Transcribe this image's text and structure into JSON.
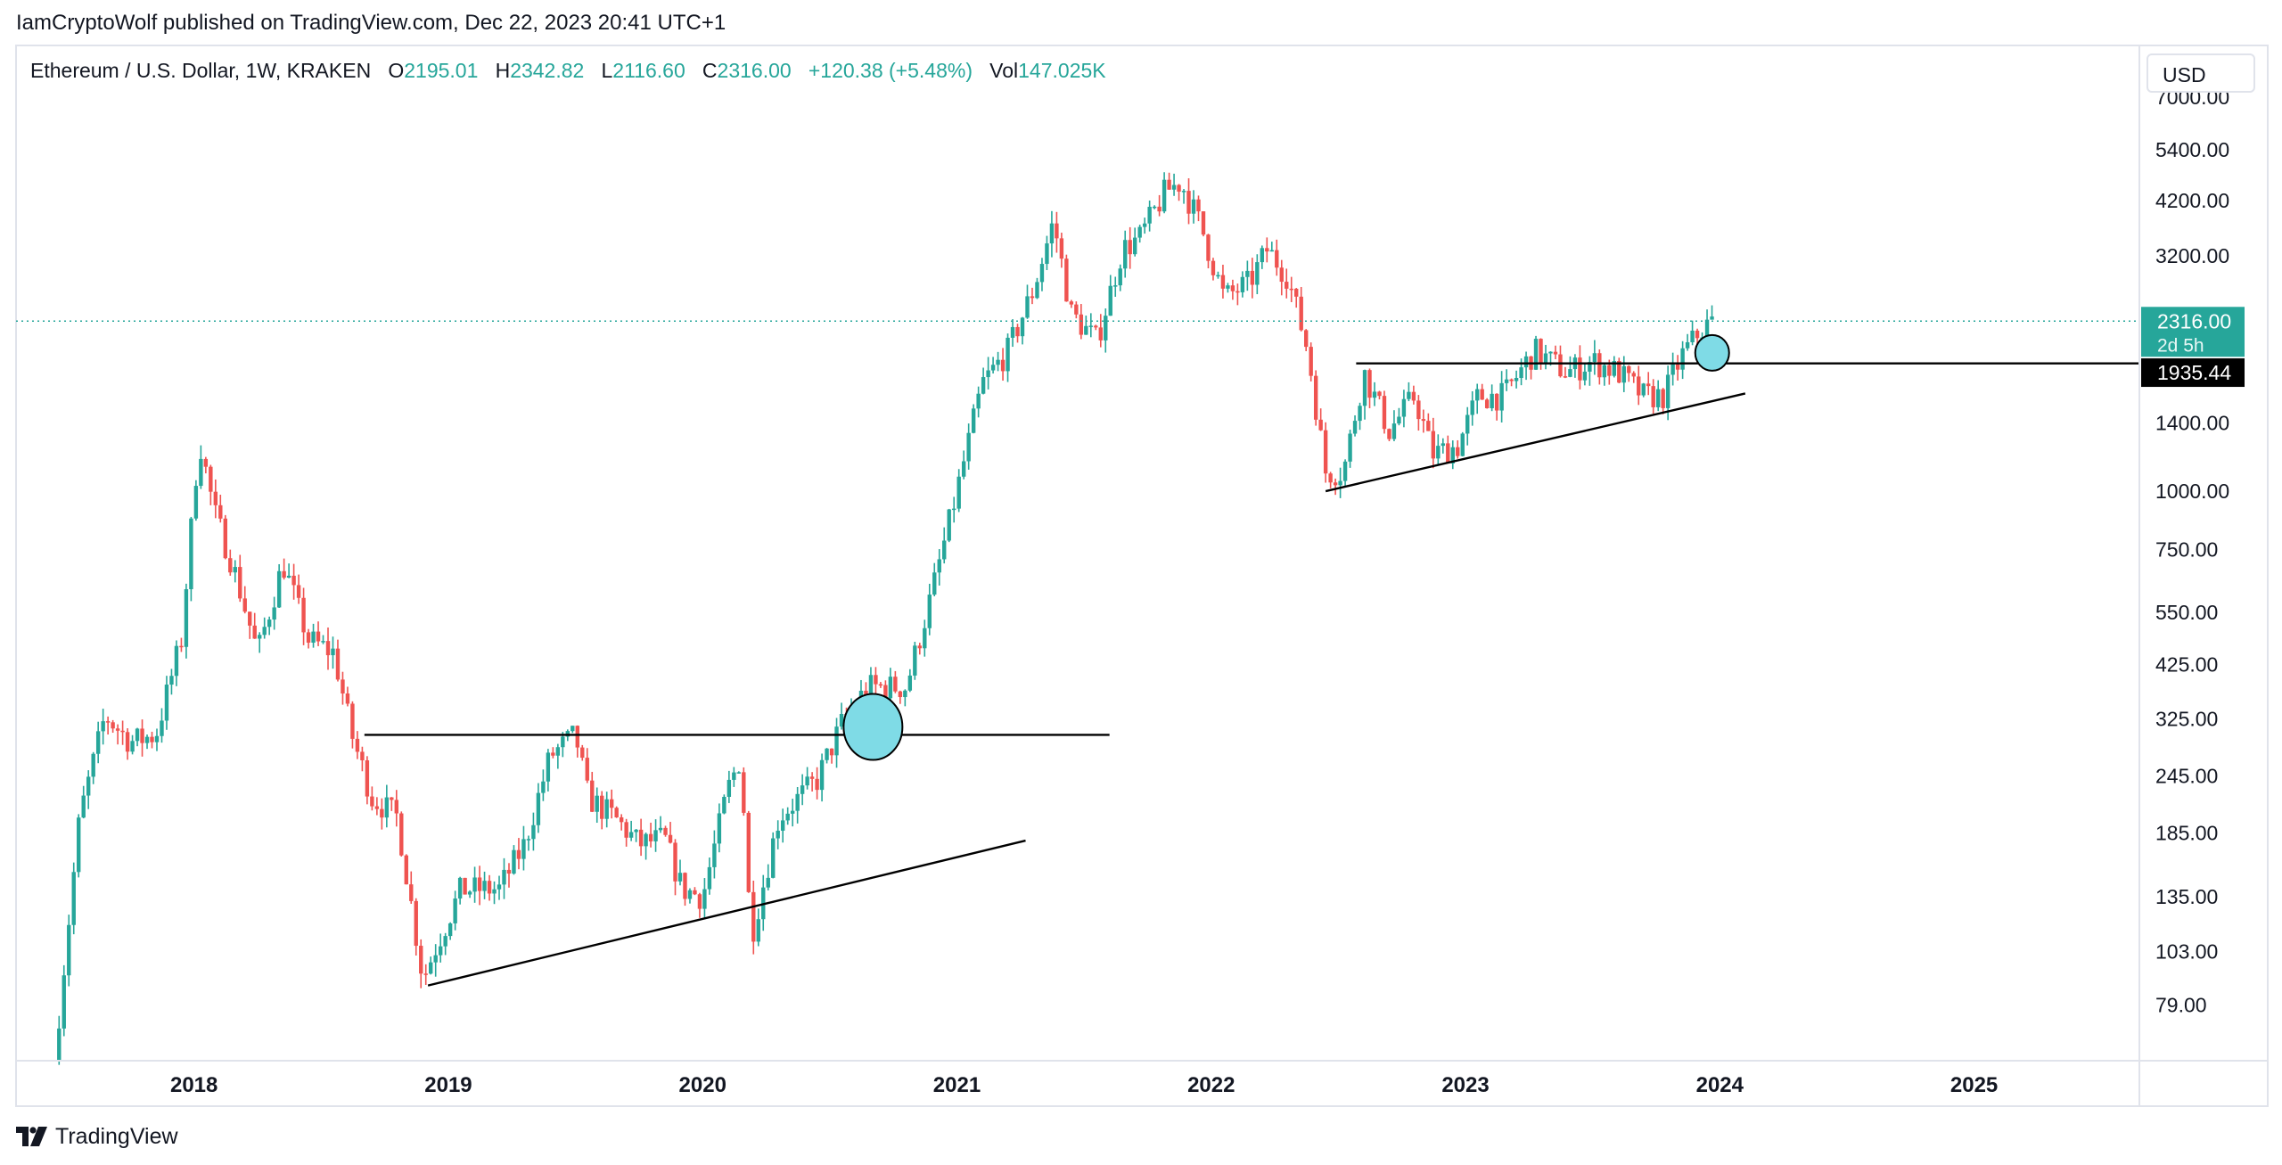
{
  "publisher": {
    "text": "IamCryptoWolf published on TradingView.com, Dec 22, 2023 20:41 UTC+1"
  },
  "legend": {
    "symbol": "Ethereum / U.S. Dollar, 1W, KRAKEN",
    "o_label": "O",
    "o_value": "2195.01",
    "h_label": "H",
    "h_value": "2342.82",
    "l_label": "L",
    "l_value": "2116.60",
    "c_label": "C",
    "c_value": "2316.00",
    "change": "+120.38 (+5.48%)",
    "vol_label": "Vol",
    "vol_value": "147.025K"
  },
  "currency_button": "USD",
  "brand": {
    "logo": "tradingview-logo-icon",
    "name": "TradingView"
  },
  "colors": {
    "up": "#26a69a",
    "down": "#ef5350",
    "circle_fill": "#7fdbe6",
    "last_price_bg": "#26a69a",
    "level_bg": "#000000",
    "drawing": "#000000"
  },
  "chart_data": {
    "type": "candlestick",
    "title": "Ethereum / U.S. Dollar, 1W, KRAKEN",
    "scale": "log",
    "ylim": [
      60,
      9000
    ],
    "xlim": [
      2017.3,
      2025.65
    ],
    "x_ticks": [
      "2018",
      "2019",
      "2020",
      "2021",
      "2022",
      "2023",
      "2024",
      "2025"
    ],
    "y_ticks": [
      "7000.00",
      "5400.00",
      "4200.00",
      "3200.00",
      "1400.00",
      "1000.00",
      "750.00",
      "550.00",
      "425.00",
      "325.00",
      "245.00",
      "185.00",
      "135.00",
      "103.00",
      "79.00"
    ],
    "last_price": {
      "value": 2316.0,
      "label": "2316.00",
      "countdown": "2d 5h"
    },
    "level_label": {
      "value": 1935.44,
      "label": "1935.44"
    },
    "price_path": [
      [
        2017.45,
        60
      ],
      [
        2017.55,
        200
      ],
      [
        2017.65,
        330
      ],
      [
        2017.75,
        290
      ],
      [
        2017.85,
        300
      ],
      [
        2017.95,
        480
      ],
      [
        2018.02,
        1300
      ],
      [
        2018.08,
        900
      ],
      [
        2018.15,
        700
      ],
      [
        2018.25,
        450
      ],
      [
        2018.35,
        700
      ],
      [
        2018.45,
        480
      ],
      [
        2018.55,
        450
      ],
      [
        2018.62,
        300
      ],
      [
        2018.7,
        220
      ],
      [
        2018.8,
        200
      ],
      [
        2018.9,
        90
      ],
      [
        2018.95,
        105
      ],
      [
        2019.05,
        140
      ],
      [
        2019.2,
        140
      ],
      [
        2019.3,
        175
      ],
      [
        2019.4,
        270
      ],
      [
        2019.5,
        300
      ],
      [
        2019.55,
        220
      ],
      [
        2019.65,
        200
      ],
      [
        2019.75,
        175
      ],
      [
        2019.85,
        180
      ],
      [
        2019.92,
        140
      ],
      [
        2020.0,
        135
      ],
      [
        2020.1,
        230
      ],
      [
        2020.15,
        270
      ],
      [
        2020.19,
        110
      ],
      [
        2020.3,
        200
      ],
      [
        2020.45,
        240
      ],
      [
        2020.55,
        320
      ],
      [
        2020.65,
        380
      ],
      [
        2020.8,
        380
      ],
      [
        2020.9,
        600
      ],
      [
        2021.0,
        1000
      ],
      [
        2021.1,
        1700
      ],
      [
        2021.2,
        2000
      ],
      [
        2021.3,
        2700
      ],
      [
        2021.38,
        3800
      ],
      [
        2021.45,
        2400
      ],
      [
        2021.55,
        2100
      ],
      [
        2021.65,
        3300
      ],
      [
        2021.72,
        3500
      ],
      [
        2021.82,
        4400
      ],
      [
        2021.88,
        4600
      ],
      [
        2021.96,
        3700
      ],
      [
        2022.05,
        2600
      ],
      [
        2022.15,
        2800
      ],
      [
        2022.22,
        3300
      ],
      [
        2022.3,
        2900
      ],
      [
        2022.38,
        2000
      ],
      [
        2022.45,
        1100
      ],
      [
        2022.52,
        1100
      ],
      [
        2022.6,
        1800
      ],
      [
        2022.7,
        1350
      ],
      [
        2022.8,
        1600
      ],
      [
        2022.87,
        1200
      ],
      [
        2022.97,
        1250
      ],
      [
        2023.05,
        1600
      ],
      [
        2023.15,
        1600
      ],
      [
        2023.27,
        2000
      ],
      [
        2023.4,
        1800
      ],
      [
        2023.5,
        1900
      ],
      [
        2023.6,
        1800
      ],
      [
        2023.7,
        1600
      ],
      [
        2023.78,
        1600
      ],
      [
        2023.85,
        1950
      ],
      [
        2023.92,
        2200
      ],
      [
        2023.97,
        2316
      ]
    ],
    "annotations": [
      {
        "kind": "trendline",
        "from": [
          2018.67,
          300
        ],
        "to": [
          2021.6,
          300
        ]
      },
      {
        "kind": "trendline",
        "from": [
          2018.92,
          87
        ],
        "to": [
          2021.27,
          178
        ]
      },
      {
        "kind": "trendline",
        "from": [
          2022.57,
          1880
        ],
        "to": [
          2025.65,
          1880
        ]
      },
      {
        "kind": "trendline",
        "from": [
          2022.45,
          1000
        ],
        "to": [
          2024.1,
          1620
        ]
      },
      {
        "kind": "circle",
        "at": [
          2020.67,
          312
        ]
      },
      {
        "kind": "circle",
        "at": [
          2023.97,
          1980
        ]
      }
    ]
  }
}
